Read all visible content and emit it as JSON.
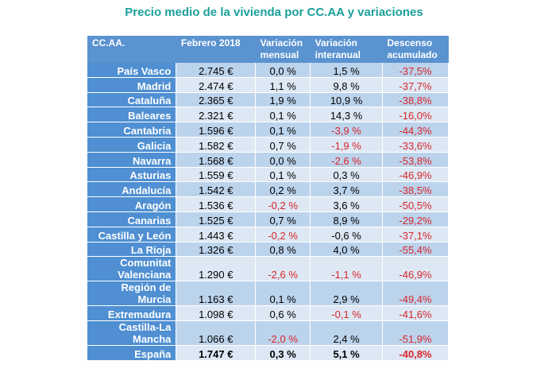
{
  "title": "Precio medio de la vivienda por CC.AA y variaciones",
  "colors": {
    "header": "#5a93d0",
    "negative": "#d9262b",
    "title": "#1aa09a"
  },
  "headers": [
    "CC.AA.",
    "Febrero 2018",
    "Variación mensual",
    "Variación interanual",
    "Descenso acumulado"
  ],
  "rows": [
    {
      "cells": [
        "País Vasco",
        "2.745 €",
        "0,0 %",
        "1,5 %",
        "-37,5%"
      ],
      "red": [
        4
      ]
    },
    {
      "cells": [
        "Madrid",
        "2.474 €",
        "1,1 %",
        "9,8 %",
        "-37,7%"
      ],
      "red": [
        4
      ]
    },
    {
      "cells": [
        "Cataluña",
        "2.365 €",
        "1,9 %",
        "10,9 %",
        "-38,8%"
      ],
      "red": [
        4
      ]
    },
    {
      "cells": [
        "Baleares",
        "2.321 €",
        "0,1 %",
        "14,3 %",
        "-16,0%"
      ],
      "red": [
        4
      ]
    },
    {
      "cells": [
        "Cantabria",
        "1.596 €",
        "0,1 %",
        "-3,9 %",
        "-44,3%"
      ],
      "red": [
        3,
        4
      ]
    },
    {
      "cells": [
        "Galicia",
        "1.582 €",
        "0,7 %",
        "-1,9 %",
        "-33,6%"
      ],
      "red": [
        3,
        4
      ]
    },
    {
      "cells": [
        "Navarra",
        "1.568 €",
        "0,0 %",
        "-2,6 %",
        "-53,8%"
      ],
      "red": [
        3,
        4
      ]
    },
    {
      "cells": [
        "Asturias",
        "1.559 €",
        "0,1 %",
        "0,3 %",
        "-46,9%"
      ],
      "red": [
        4
      ]
    },
    {
      "cells": [
        "Andalucía",
        "1.542 €",
        "0,2 %",
        "3,7 %",
        "-38,5%"
      ],
      "red": [
        4
      ]
    },
    {
      "cells": [
        "Aragón",
        "1.536 €",
        "-0,2 %",
        "3,6 %",
        "-50,5%"
      ],
      "red": [
        2,
        4
      ]
    },
    {
      "cells": [
        "Canarias",
        "1.525 €",
        "0,7 %",
        "8,9 %",
        "-29,2%"
      ],
      "red": [
        4
      ]
    },
    {
      "cells": [
        "Castilla y León",
        "1.443 €",
        "-0,2 %",
        "-0,6 %",
        "-37,1%"
      ],
      "red": [
        2,
        4
      ]
    },
    {
      "cells": [
        "La Rioja",
        "1.326 €",
        "0,8 %",
        "4,0 %",
        "-55,4%"
      ],
      "red": [
        4
      ]
    },
    {
      "cells": [
        "Comunitat Valenciana",
        "1.290 €",
        "-2,6 %",
        "-1,1 %",
        "-46,9%"
      ],
      "red": [
        2,
        3,
        4
      ]
    },
    {
      "cells": [
        "Región de Murcia",
        "1.163 €",
        "0,1 %",
        "2,9 %",
        "-49,4%"
      ],
      "red": [
        4
      ]
    },
    {
      "cells": [
        "Extremadura",
        "1.098 €",
        "0,6 %",
        "-0,1 %",
        "-41,6%"
      ],
      "red": [
        3,
        4
      ]
    },
    {
      "cells": [
        "Castilla-La Mancha",
        "1.066 €",
        "-2,0 %",
        "2,4 %",
        "-51,9%"
      ],
      "red": [
        2,
        4
      ]
    },
    {
      "cells": [
        "España",
        "1.747 €",
        "0,3 %",
        "5,1 %",
        "-40,8%"
      ],
      "red": [
        4
      ],
      "total": true
    }
  ]
}
